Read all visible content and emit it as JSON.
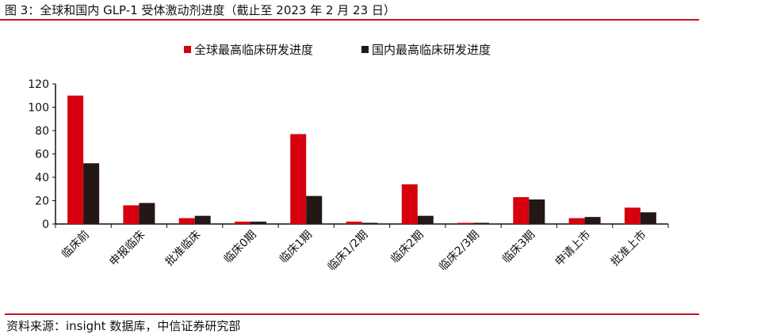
{
  "header": {
    "title": "图 3：全球和国内 GLP-1 受体激动剂进度（截止至 2023 年 2 月 23 日）"
  },
  "footer": {
    "source": "资料来源：insight 数据库，中信证券研究部"
  },
  "chart_data": {
    "type": "bar",
    "title": "",
    "xlabel": "",
    "ylabel": "",
    "ylim": [
      0,
      120
    ],
    "yticks": [
      0,
      20,
      40,
      60,
      80,
      100,
      120
    ],
    "grid": false,
    "legend_position": "top",
    "categories": [
      "临床前",
      "申报临床",
      "批准临床",
      "临床0期",
      "临床1期",
      "临床1/2期",
      "临床2期",
      "临床2/3期",
      "临床3期",
      "申请上市",
      "批准上市"
    ],
    "series": [
      {
        "name": "全球最高临床研发进度",
        "color": "#d7000f",
        "values": [
          110,
          16,
          5,
          2,
          77,
          2,
          34,
          1,
          23,
          5,
          14
        ]
      },
      {
        "name": "国内最高临床研发进度",
        "color": "#231815",
        "values": [
          52,
          18,
          7,
          2,
          24,
          1,
          7,
          1,
          21,
          6,
          10
        ]
      }
    ]
  }
}
